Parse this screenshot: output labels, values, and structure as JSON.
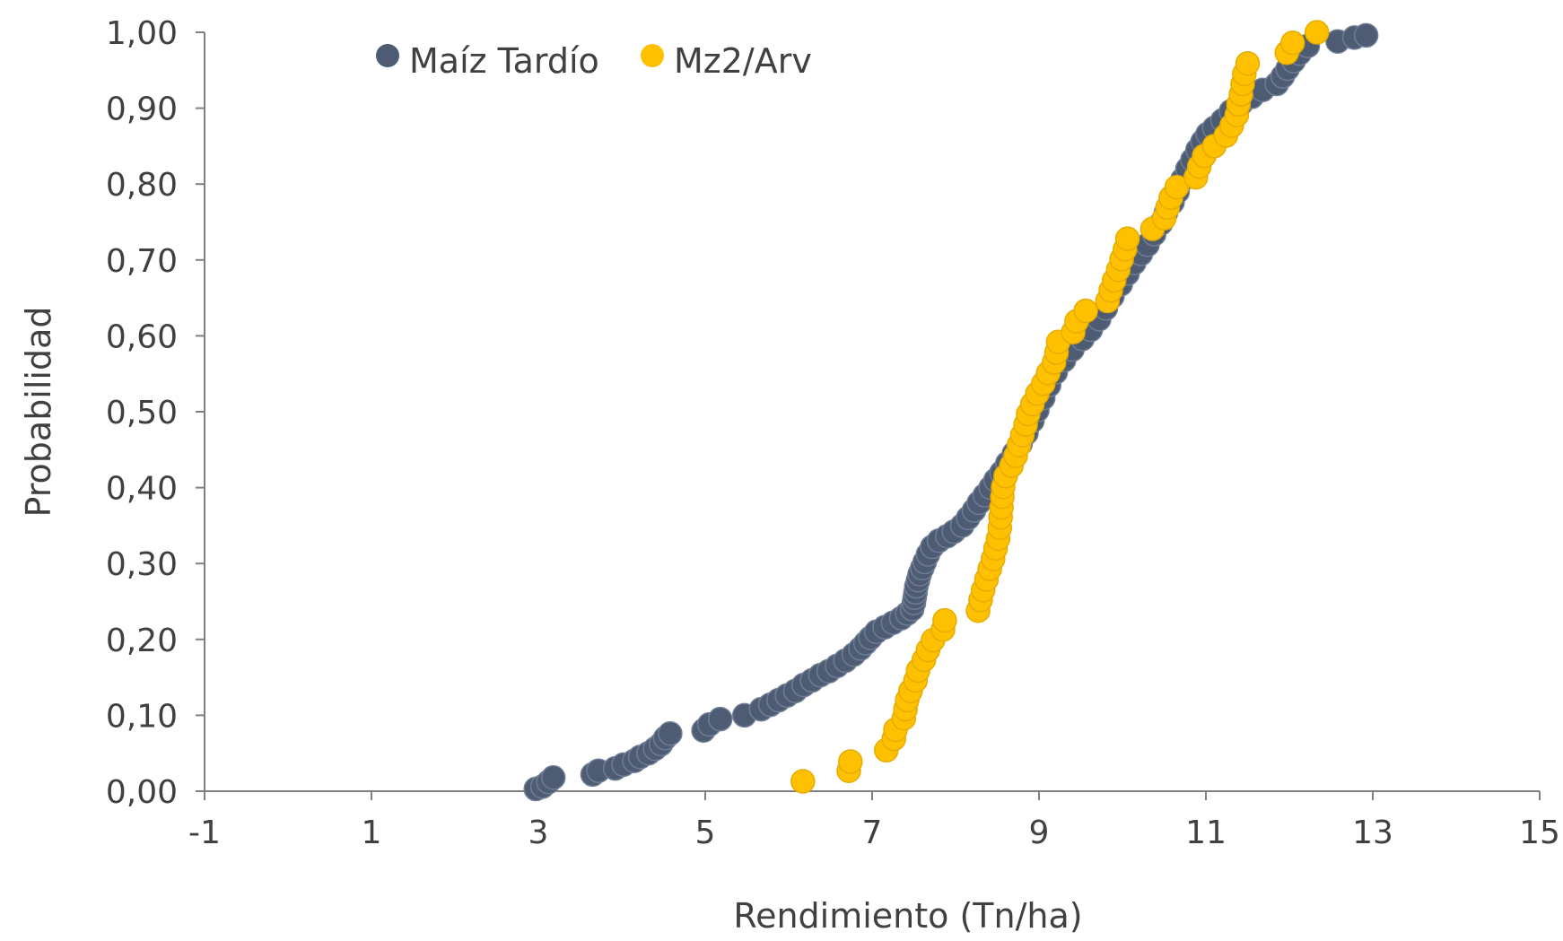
{
  "chart_data": {
    "type": "scatter",
    "title": "",
    "xlabel": "Rendimiento (Tn/ha)",
    "ylabel": "Probabilidad",
    "xlim": [
      -1,
      15
    ],
    "ylim": [
      0,
      1
    ],
    "x_ticks": [
      -1,
      1,
      3,
      5,
      7,
      9,
      11,
      13,
      15
    ],
    "x_tick_labels": [
      "-1",
      "1",
      "3",
      "5",
      "7",
      "9",
      "11",
      "13",
      "15"
    ],
    "y_ticks": [
      0,
      0.1,
      0.2,
      0.3,
      0.4,
      0.5,
      0.6,
      0.7,
      0.8,
      0.9,
      1.0
    ],
    "y_tick_labels": [
      "0,00",
      "0,10",
      "0,20",
      "0,30",
      "0,40",
      "0,50",
      "0,60",
      "0,70",
      "0,80",
      "0,90",
      "1,00"
    ],
    "grid": false,
    "legend_position": "top-left",
    "series": [
      {
        "name": "Maíz Tardío",
        "color": "#4d5b73",
        "points": [
          [
            2.97,
            0.003
          ],
          [
            3.05,
            0.006
          ],
          [
            3.12,
            0.012
          ],
          [
            3.18,
            0.018
          ],
          [
            3.65,
            0.022
          ],
          [
            3.72,
            0.027
          ],
          [
            3.92,
            0.03
          ],
          [
            4.02,
            0.035
          ],
          [
            4.15,
            0.04
          ],
          [
            4.22,
            0.045
          ],
          [
            4.32,
            0.05
          ],
          [
            4.4,
            0.056
          ],
          [
            4.47,
            0.062
          ],
          [
            4.52,
            0.07
          ],
          [
            4.58,
            0.076
          ],
          [
            4.98,
            0.08
          ],
          [
            5.05,
            0.088
          ],
          [
            5.18,
            0.095
          ],
          [
            5.47,
            0.1
          ],
          [
            5.67,
            0.108
          ],
          [
            5.78,
            0.114
          ],
          [
            5.88,
            0.12
          ],
          [
            5.98,
            0.126
          ],
          [
            6.08,
            0.132
          ],
          [
            6.18,
            0.14
          ],
          [
            6.28,
            0.146
          ],
          [
            6.38,
            0.153
          ],
          [
            6.48,
            0.158
          ],
          [
            6.58,
            0.165
          ],
          [
            6.68,
            0.172
          ],
          [
            6.78,
            0.18
          ],
          [
            6.86,
            0.188
          ],
          [
            6.92,
            0.195
          ],
          [
            6.98,
            0.202
          ],
          [
            7.05,
            0.21
          ],
          [
            7.15,
            0.216
          ],
          [
            7.25,
            0.222
          ],
          [
            7.35,
            0.228
          ],
          [
            7.42,
            0.234
          ],
          [
            7.48,
            0.24
          ],
          [
            7.5,
            0.248
          ],
          [
            7.51,
            0.255
          ],
          [
            7.52,
            0.262
          ],
          [
            7.53,
            0.27
          ],
          [
            7.55,
            0.278
          ],
          [
            7.57,
            0.286
          ],
          [
            7.6,
            0.294
          ],
          [
            7.63,
            0.302
          ],
          [
            7.67,
            0.312
          ],
          [
            7.72,
            0.322
          ],
          [
            7.8,
            0.33
          ],
          [
            7.9,
            0.336
          ],
          [
            7.98,
            0.342
          ],
          [
            8.08,
            0.35
          ],
          [
            8.15,
            0.36
          ],
          [
            8.22,
            0.37
          ],
          [
            8.28,
            0.38
          ],
          [
            8.35,
            0.39
          ],
          [
            8.42,
            0.4
          ],
          [
            8.48,
            0.41
          ],
          [
            8.55,
            0.42
          ],
          [
            8.62,
            0.432
          ],
          [
            8.7,
            0.445
          ],
          [
            8.78,
            0.458
          ],
          [
            8.85,
            0.472
          ],
          [
            8.92,
            0.488
          ],
          [
            8.98,
            0.502
          ],
          [
            9.05,
            0.518
          ],
          [
            9.12,
            0.535
          ],
          [
            9.2,
            0.552
          ],
          [
            9.3,
            0.568
          ],
          [
            9.4,
            0.582
          ],
          [
            9.52,
            0.596
          ],
          [
            9.62,
            0.608
          ],
          [
            9.72,
            0.622
          ],
          [
            9.8,
            0.636
          ],
          [
            9.88,
            0.652
          ],
          [
            9.98,
            0.668
          ],
          [
            10.06,
            0.682
          ],
          [
            10.14,
            0.696
          ],
          [
            10.22,
            0.708
          ],
          [
            10.3,
            0.72
          ],
          [
            10.38,
            0.734
          ],
          [
            10.46,
            0.748
          ],
          [
            10.52,
            0.762
          ],
          [
            10.6,
            0.776
          ],
          [
            10.66,
            0.79
          ],
          [
            10.72,
            0.806
          ],
          [
            10.78,
            0.82
          ],
          [
            10.84,
            0.832
          ],
          [
            10.9,
            0.845
          ],
          [
            10.96,
            0.856
          ],
          [
            11.02,
            0.866
          ],
          [
            11.1,
            0.874
          ],
          [
            11.2,
            0.884
          ],
          [
            11.3,
            0.896
          ],
          [
            11.42,
            0.906
          ],
          [
            11.55,
            0.915
          ],
          [
            11.68,
            0.924
          ],
          [
            11.85,
            0.932
          ],
          [
            11.92,
            0.942
          ],
          [
            11.98,
            0.952
          ],
          [
            12.05,
            0.962
          ],
          [
            12.12,
            0.972
          ],
          [
            12.22,
            0.982
          ],
          [
            12.58,
            0.988
          ],
          [
            12.78,
            0.993
          ],
          [
            12.92,
            0.996
          ]
        ]
      },
      {
        "name": "Mz2/Arv",
        "color": "#ffc000",
        "points": [
          [
            6.17,
            0.013
          ],
          [
            6.72,
            0.027
          ],
          [
            6.74,
            0.039
          ],
          [
            7.17,
            0.054
          ],
          [
            7.26,
            0.069
          ],
          [
            7.28,
            0.081
          ],
          [
            7.38,
            0.096
          ],
          [
            7.4,
            0.108
          ],
          [
            7.42,
            0.12
          ],
          [
            7.46,
            0.132
          ],
          [
            7.52,
            0.146
          ],
          [
            7.55,
            0.159
          ],
          [
            7.62,
            0.173
          ],
          [
            7.67,
            0.186
          ],
          [
            7.73,
            0.199
          ],
          [
            7.85,
            0.213
          ],
          [
            7.87,
            0.225
          ],
          [
            8.27,
            0.238
          ],
          [
            8.3,
            0.252
          ],
          [
            8.33,
            0.265
          ],
          [
            8.37,
            0.279
          ],
          [
            8.41,
            0.293
          ],
          [
            8.45,
            0.306
          ],
          [
            8.48,
            0.32
          ],
          [
            8.51,
            0.333
          ],
          [
            8.53,
            0.347
          ],
          [
            8.54,
            0.361
          ],
          [
            8.55,
            0.374
          ],
          [
            8.56,
            0.388
          ],
          [
            8.57,
            0.401
          ],
          [
            8.6,
            0.415
          ],
          [
            8.67,
            0.429
          ],
          [
            8.72,
            0.442
          ],
          [
            8.76,
            0.456
          ],
          [
            8.8,
            0.469
          ],
          [
            8.84,
            0.483
          ],
          [
            8.87,
            0.497
          ],
          [
            8.92,
            0.51
          ],
          [
            8.98,
            0.524
          ],
          [
            9.05,
            0.537
          ],
          [
            9.11,
            0.551
          ],
          [
            9.18,
            0.565
          ],
          [
            9.21,
            0.578
          ],
          [
            9.23,
            0.592
          ],
          [
            9.41,
            0.605
          ],
          [
            9.45,
            0.619
          ],
          [
            9.56,
            0.633
          ],
          [
            9.82,
            0.646
          ],
          [
            9.86,
            0.66
          ],
          [
            9.9,
            0.673
          ],
          [
            9.95,
            0.687
          ],
          [
            9.99,
            0.701
          ],
          [
            10.03,
            0.714
          ],
          [
            10.06,
            0.728
          ],
          [
            10.36,
            0.741
          ],
          [
            10.5,
            0.755
          ],
          [
            10.54,
            0.769
          ],
          [
            10.58,
            0.782
          ],
          [
            10.65,
            0.796
          ],
          [
            10.88,
            0.809
          ],
          [
            10.92,
            0.823
          ],
          [
            10.98,
            0.837
          ],
          [
            11.1,
            0.85
          ],
          [
            11.24,
            0.864
          ],
          [
            11.31,
            0.877
          ],
          [
            11.37,
            0.891
          ],
          [
            11.39,
            0.905
          ],
          [
            11.42,
            0.918
          ],
          [
            11.44,
            0.932
          ],
          [
            11.46,
            0.945
          ],
          [
            11.5,
            0.959
          ],
          [
            11.97,
            0.973
          ],
          [
            12.04,
            0.986
          ],
          [
            12.33,
            1.0
          ]
        ]
      }
    ]
  }
}
